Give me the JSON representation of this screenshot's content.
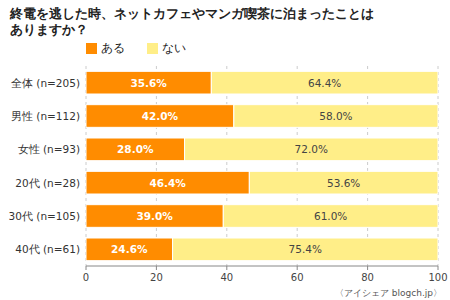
{
  "chart_data": {
    "type": "bar",
    "orientation": "horizontal",
    "stacked": true,
    "title": "終電を逃した時、ネットカフェやマンガ喫茶に泊まったことは\nありますか？",
    "categories": [
      "全体 (n=205)",
      "男性 (n=112)",
      "女性 (n=93)",
      "20代 (n=28)",
      "30代 (n=105)",
      "40代 (n=61)"
    ],
    "series": [
      {
        "name": "ある",
        "color": "#FF8C00",
        "values": [
          35.6,
          42.0,
          28.0,
          46.4,
          39.0,
          24.6
        ],
        "value_labels": [
          "35.6%",
          "42.0%",
          "28.0%",
          "46.4%",
          "39.0%",
          "24.6%"
        ]
      },
      {
        "name": "ない",
        "color": "#FFEE88",
        "values": [
          64.4,
          58.0,
          72.0,
          53.6,
          61.0,
          75.4
        ],
        "value_labels": [
          "64.4%",
          "58.0%",
          "72.0%",
          "53.6%",
          "61.0%",
          "75.4%"
        ]
      }
    ],
    "xlim": [
      0,
      100
    ],
    "xticks": [
      0,
      20,
      40,
      60,
      80,
      100
    ],
    "grid": true,
    "legend": "top",
    "data_labels": true,
    "annotations": [
      "〈アイシェア blogch.jp〉"
    ]
  }
}
